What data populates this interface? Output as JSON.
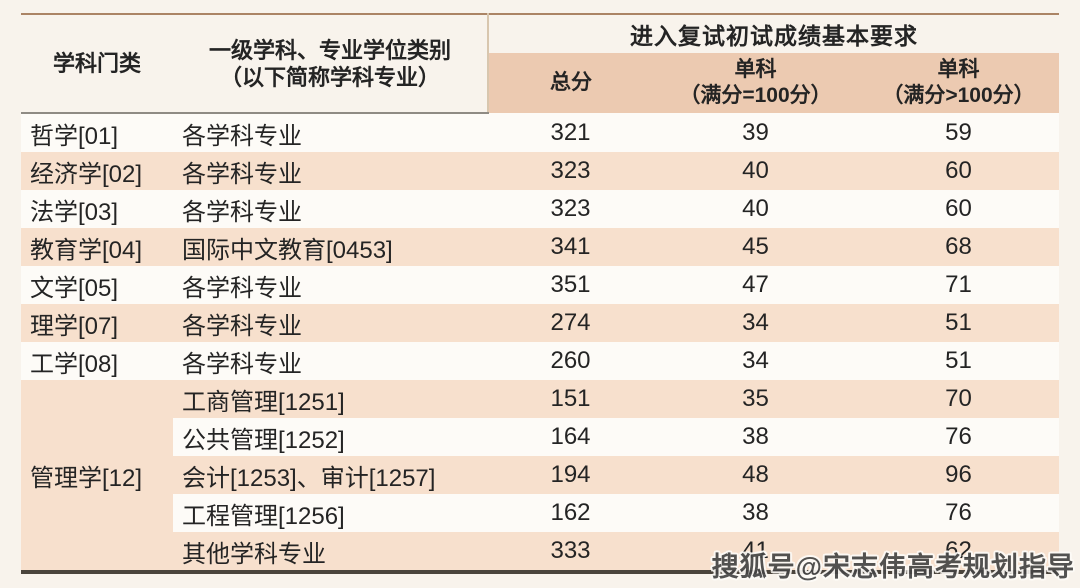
{
  "header": {
    "category": "学科门类",
    "program_line1": "一级学科、专业学位类别",
    "program_line2": "（以下简称学科专业）",
    "requirements": "进入复试初试成绩基本要求",
    "total": "总分",
    "single_eq_line1": "单科",
    "single_eq_line2": "（满分=100分）",
    "single_gt_line1": "单科",
    "single_gt_line2": "（满分>100分）"
  },
  "rows": [
    {
      "category": "哲学[01]",
      "program": "各学科专业",
      "total": "321",
      "single_eq": "39",
      "single_gt": "59"
    },
    {
      "category": "经济学[02]",
      "program": "各学科专业",
      "total": "323",
      "single_eq": "40",
      "single_gt": "60"
    },
    {
      "category": "法学[03]",
      "program": "各学科专业",
      "total": "323",
      "single_eq": "40",
      "single_gt": "60"
    },
    {
      "category": "教育学[04]",
      "program": "国际中文教育[0453]",
      "total": "341",
      "single_eq": "45",
      "single_gt": "68"
    },
    {
      "category": "文学[05]",
      "program": "各学科专业",
      "total": "351",
      "single_eq": "47",
      "single_gt": "71"
    },
    {
      "category": "理学[07]",
      "program": "各学科专业",
      "total": "274",
      "single_eq": "34",
      "single_gt": "51"
    },
    {
      "category": "工学[08]",
      "program": "各学科专业",
      "total": "260",
      "single_eq": "34",
      "single_gt": "51"
    },
    {
      "category": "管理学[12]",
      "program": "工商管理[1251]",
      "total": "151",
      "single_eq": "35",
      "single_gt": "70"
    },
    {
      "program": "公共管理[1252]",
      "total": "164",
      "single_eq": "38",
      "single_gt": "76"
    },
    {
      "program": "会计[1253]、审计[1257]",
      "total": "194",
      "single_eq": "48",
      "single_gt": "96"
    },
    {
      "program": "工程管理[1256]",
      "total": "162",
      "single_eq": "38",
      "single_gt": "76"
    },
    {
      "program": "其他学科专业",
      "total": "333",
      "single_eq": "41",
      "single_gt": "62"
    }
  ],
  "watermark": "搜狐号@宋志伟高考规划指导",
  "colors": {
    "page_bg": "#f8f3ec",
    "row_white": "#fdfbf7",
    "row_peach": "#f7e0cd",
    "subheader_peach": "#eccab1",
    "top_rule": "#ab8465",
    "bottom_rule": "#4a443c",
    "text": "#242424"
  }
}
